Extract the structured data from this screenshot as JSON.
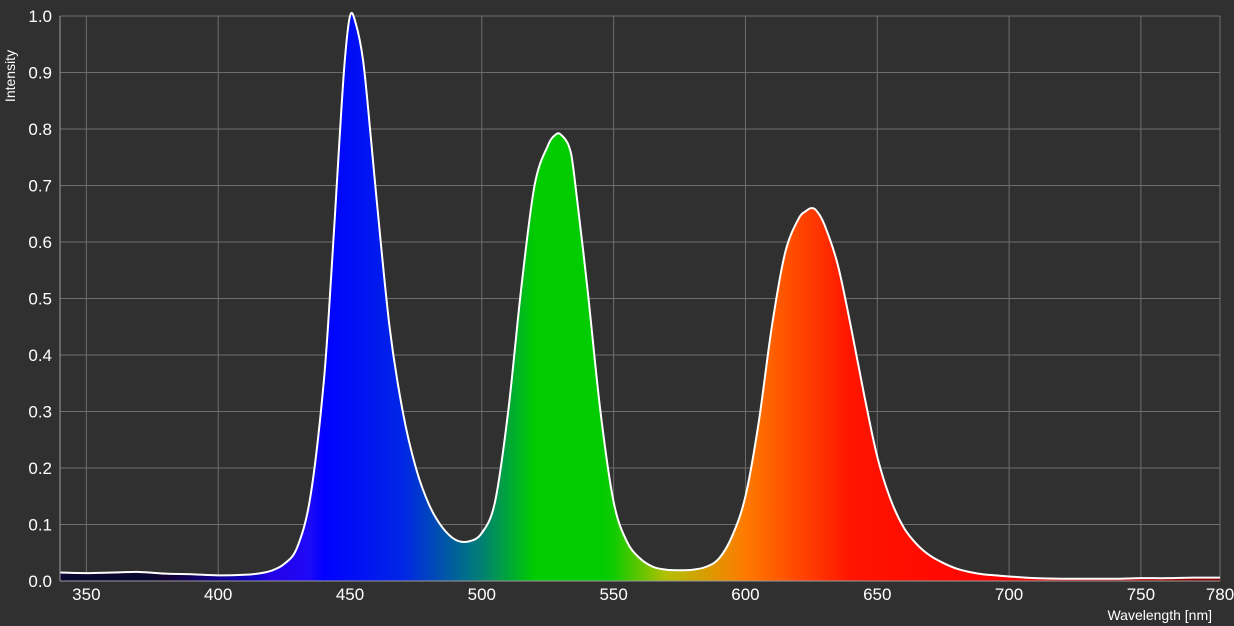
{
  "chart_data": {
    "type": "area",
    "title": "",
    "xlabel": "Wavelength [nm]",
    "ylabel": "Intensity",
    "xlim": [
      340,
      780
    ],
    "ylim": [
      0,
      1.0
    ],
    "x_ticks": [
      350,
      400,
      450,
      500,
      550,
      600,
      650,
      700,
      750,
      780
    ],
    "y_ticks": [
      0.0,
      0.1,
      0.2,
      0.3,
      0.4,
      0.5,
      0.6,
      0.7,
      0.8,
      0.9,
      1.0
    ],
    "x_tick_labels": [
      "350",
      "400",
      "450",
      "500",
      "550",
      "600",
      "650",
      "700",
      "750",
      "780"
    ],
    "y_tick_labels": [
      "0.0",
      "0.1",
      "0.2",
      "0.3",
      "0.4",
      "0.5",
      "0.6",
      "0.7",
      "0.8",
      "0.9",
      "1.0"
    ],
    "grid": true,
    "fill": "spectral colors by wavelength",
    "line_color": "#ffffff",
    "background_color": "#303030",
    "grid_color": "#6e6e6e",
    "x": [
      340,
      350,
      360,
      370,
      380,
      390,
      400,
      410,
      415,
      420,
      425,
      430,
      435,
      440,
      443,
      446,
      448,
      450,
      452,
      455,
      458,
      460,
      465,
      470,
      475,
      480,
      485,
      490,
      495,
      500,
      505,
      510,
      515,
      520,
      525,
      528,
      530,
      533,
      535,
      540,
      545,
      550,
      555,
      560,
      565,
      570,
      575,
      580,
      585,
      590,
      595,
      600,
      605,
      610,
      615,
      620,
      623,
      625,
      627,
      630,
      635,
      640,
      645,
      650,
      655,
      660,
      665,
      670,
      675,
      680,
      685,
      690,
      695,
      700,
      710,
      720,
      730,
      740,
      750,
      760,
      770,
      780
    ],
    "y": [
      0.015,
      0.014,
      0.015,
      0.016,
      0.013,
      0.012,
      0.01,
      0.011,
      0.013,
      0.018,
      0.03,
      0.06,
      0.15,
      0.35,
      0.55,
      0.78,
      0.92,
      1.0,
      0.99,
      0.92,
      0.78,
      0.68,
      0.45,
      0.3,
      0.2,
      0.135,
      0.095,
      0.073,
      0.07,
      0.085,
      0.14,
      0.3,
      0.52,
      0.7,
      0.77,
      0.79,
      0.79,
      0.77,
      0.72,
      0.52,
      0.3,
      0.14,
      0.07,
      0.04,
      0.025,
      0.02,
      0.019,
      0.02,
      0.025,
      0.04,
      0.08,
      0.15,
      0.28,
      0.45,
      0.58,
      0.64,
      0.655,
      0.66,
      0.655,
      0.63,
      0.56,
      0.45,
      0.33,
      0.22,
      0.145,
      0.095,
      0.065,
      0.045,
      0.032,
      0.022,
      0.016,
      0.012,
      0.01,
      0.008,
      0.005,
      0.004,
      0.004,
      0.004,
      0.005,
      0.005,
      0.006,
      0.006
    ]
  }
}
